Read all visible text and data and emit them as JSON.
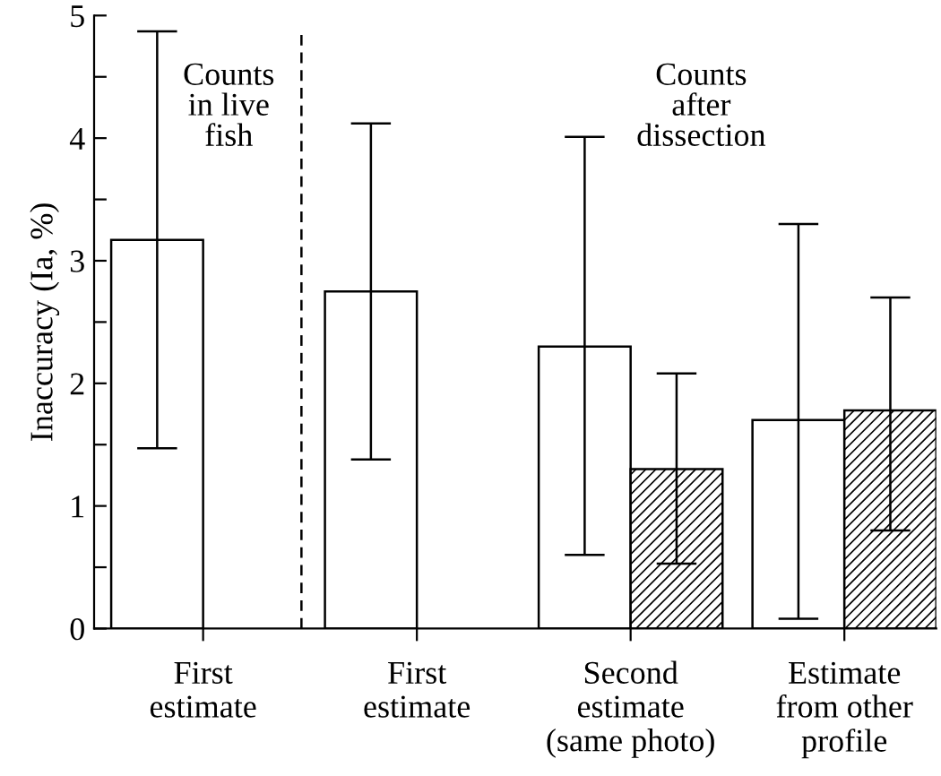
{
  "chart_data": {
    "type": "bar",
    "ylabel": "Inaccuracy (Ia, %)",
    "categories": [
      "First\nestimate",
      "First\nestimate",
      "Second\nestimate\n(same photo)",
      "Estimate\nfrom other\nprofile"
    ],
    "series": [
      {
        "color": "#ffffff",
        "values": [
          3.17,
          2.75,
          2.3,
          1.7
        ],
        "errors": [
          [
            1.47,
            4.87
          ],
          [
            1.38,
            4.12
          ],
          [
            0.6,
            4.01
          ],
          [
            0.08,
            3.3
          ]
        ]
      },
      {
        "color": "#000000",
        "values": [
          null,
          null,
          1.3,
          1.78
        ],
        "errors": [
          null,
          null,
          [
            0.53,
            2.08
          ],
          [
            0.8,
            2.7
          ]
        ]
      }
    ],
    "ylim": [
      0,
      5
    ],
    "yticks": [
      0,
      {
        "value": 0.5,
        "label": null
      },
      1,
      {
        "value": 1.5,
        "label": null
      },
      2,
      {
        "value": 2.5,
        "label": null
      },
      3,
      {
        "value": 3.5,
        "label": null
      },
      4,
      {
        "value": 4.5,
        "label": null
      },
      5
    ],
    "annotations": [
      "Counts\nin live\nfish",
      "Counts\nafter\ndissection"
    ],
    "grid": false,
    "legend": false
  }
}
